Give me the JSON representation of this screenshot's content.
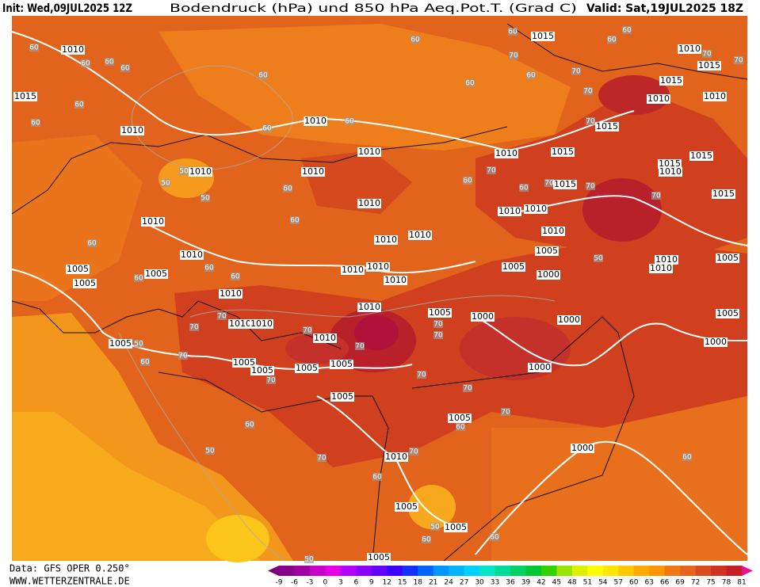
{
  "header": {
    "init": "Init: Wed,09JUL2025 12Z",
    "title": "Bodendruck (hPa) und 850 hPa Aeq.Pot.T. (Grad C)",
    "valid": "Valid: Sat,19JUL2025 18Z"
  },
  "footer": {
    "data": "Data: GFS OPER 0.250°",
    "site": "WWW.WETTERZENTRALE.DE"
  },
  "colorbar": {
    "ticks": [
      -9,
      -6,
      -3,
      0,
      3,
      6,
      9,
      12,
      15,
      18,
      21,
      24,
      27,
      30,
      33,
      36,
      39,
      42,
      45,
      48,
      51,
      54,
      57,
      60,
      63,
      66,
      69,
      72,
      75,
      78,
      81
    ],
    "colors": [
      "#7a0080",
      "#8b008b",
      "#a000a0",
      "#c800c8",
      "#e600e6",
      "#b400ff",
      "#8c00ff",
      "#6400ff",
      "#3c00ff",
      "#1432ff",
      "#0064ff",
      "#0096ff",
      "#00b4ff",
      "#00d2ff",
      "#00e6c8",
      "#00dc96",
      "#00d264",
      "#00c832",
      "#32d200",
      "#96e600",
      "#dcf000",
      "#ffff00",
      "#ffe600",
      "#ffc800",
      "#ffaa00",
      "#fa9600",
      "#f07814",
      "#e6641e",
      "#dc4b1e",
      "#d23223",
      "#c81e28",
      "#e6148c"
    ]
  },
  "isobar_labels": [
    1010,
    1015,
    1010,
    1010,
    1010,
    1010,
    1010,
    1010,
    1010,
    1010,
    1005,
    1005,
    1005,
    1010,
    1010,
    1010,
    1010,
    1010,
    1010,
    1010,
    1010,
    1010,
    1010,
    1005,
    1005,
    1005,
    1005,
    1005,
    1005,
    1005,
    1005,
    1010,
    1005,
    1005,
    1005,
    1000,
    1005,
    1005,
    1000,
    1000,
    1000,
    1000,
    1000,
    1005,
    1005,
    1010,
    1010,
    1010,
    1010,
    1015,
    1015,
    1015,
    1015,
    1010,
    1015,
    1010,
    1015,
    1010,
    1015,
    1015,
    1010,
    1015,
    1010,
    1010
  ],
  "theta_labels": [
    60,
    60,
    60,
    60,
    60,
    60,
    60,
    60,
    60,
    60,
    60,
    60,
    70,
    60,
    60,
    60,
    70,
    70,
    70,
    70,
    70,
    60,
    50,
    50,
    50,
    60,
    60,
    60,
    60,
    60,
    70,
    70,
    70,
    50,
    60,
    60,
    50,
    70,
    60,
    70,
    50,
    60,
    60,
    60,
    70,
    70,
    70,
    70,
    70,
    70,
    70,
    70,
    60,
    60,
    70,
    70,
    70,
    70,
    50,
    60,
    50
  ]
}
